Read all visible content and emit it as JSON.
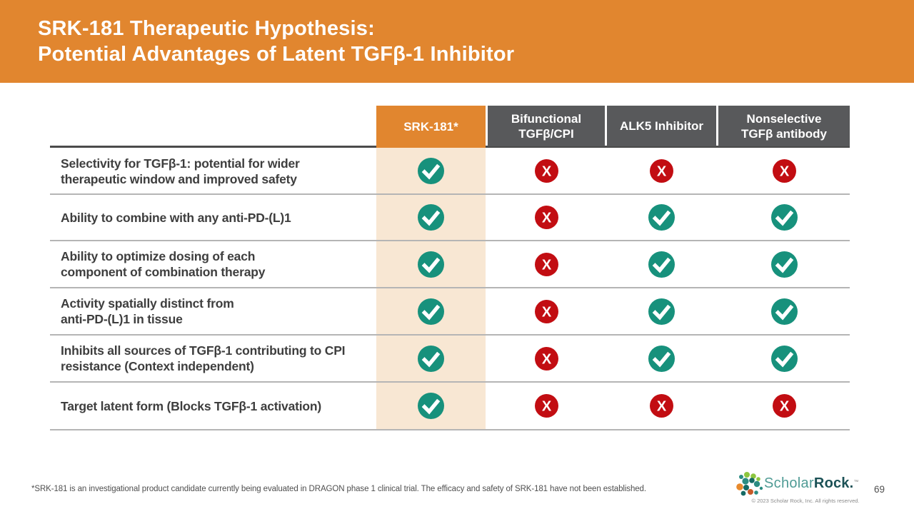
{
  "slide": {
    "title_line1": "SRK-181 Therapeutic Hypothesis:",
    "title_line2": "Potential Advantages of Latent TGFβ-1 Inhibitor",
    "footnote": "*SRK-181 is an investigational product candidate currently being evaluated in DRAGON phase 1 clinical trial. The efficacy and safety of SRK-181 have not been established.",
    "page_number": "69"
  },
  "logo": {
    "name_light": "Scholar",
    "name_bold": "Rock",
    "period": ".",
    "trademark": "™",
    "copyright": "© 2023 Scholar Rock, Inc. All rights reserved."
  },
  "icons": {
    "check": "check-icon",
    "x": "x-icon",
    "x_glyph": "X"
  },
  "colors": {
    "banner_orange": "#E1862F",
    "header_gray": "#58595B",
    "srk_tint": "#F8E7D3",
    "check_teal": "#17917C",
    "x_red": "#C20D12",
    "top_rule": "#4A4A4A",
    "row_rule": "#B5B5B5",
    "logo_green": "#8DC63F",
    "logo_teal": "#2B8C82",
    "logo_deep_teal": "#156A64",
    "logo_orange": "#E88A2D",
    "logo_rust": "#C65A28"
  },
  "table": {
    "columns": [
      {
        "lines": [
          "SRK-181*"
        ],
        "highlight": true
      },
      {
        "lines": [
          "Bifunctional",
          "TGFβ/CPI"
        ],
        "highlight": false
      },
      {
        "lines": [
          "ALK5 Inhibitor"
        ],
        "highlight": false
      },
      {
        "lines": [
          "Nonselective",
          "TGFβ antibody"
        ],
        "highlight": false
      }
    ],
    "rows": [
      {
        "lines": [
          "Selectivity for TGFβ-1: potential for wider",
          "therapeutic window and improved safety"
        ],
        "values": [
          "check",
          "x",
          "x",
          "x"
        ]
      },
      {
        "lines": [
          "Ability to combine with any anti-PD-(L)1"
        ],
        "values": [
          "check",
          "x",
          "check",
          "check"
        ]
      },
      {
        "lines": [
          "Ability to optimize dosing of each",
          "component of combination therapy"
        ],
        "values": [
          "check",
          "x",
          "check",
          "check"
        ]
      },
      {
        "lines": [
          "Activity spatially distinct from",
          "anti-PD-(L)1 in tissue"
        ],
        "values": [
          "check",
          "x",
          "check",
          "check"
        ]
      },
      {
        "lines": [
          "Inhibits all sources of TGFβ-1 contributing to CPI",
          "resistance (Context independent)"
        ],
        "values": [
          "check",
          "x",
          "check",
          "check"
        ]
      },
      {
        "lines": [
          "Target latent form (Blocks TGFβ-1 activation)"
        ],
        "values": [
          "check",
          "x",
          "x",
          "x"
        ]
      }
    ]
  }
}
